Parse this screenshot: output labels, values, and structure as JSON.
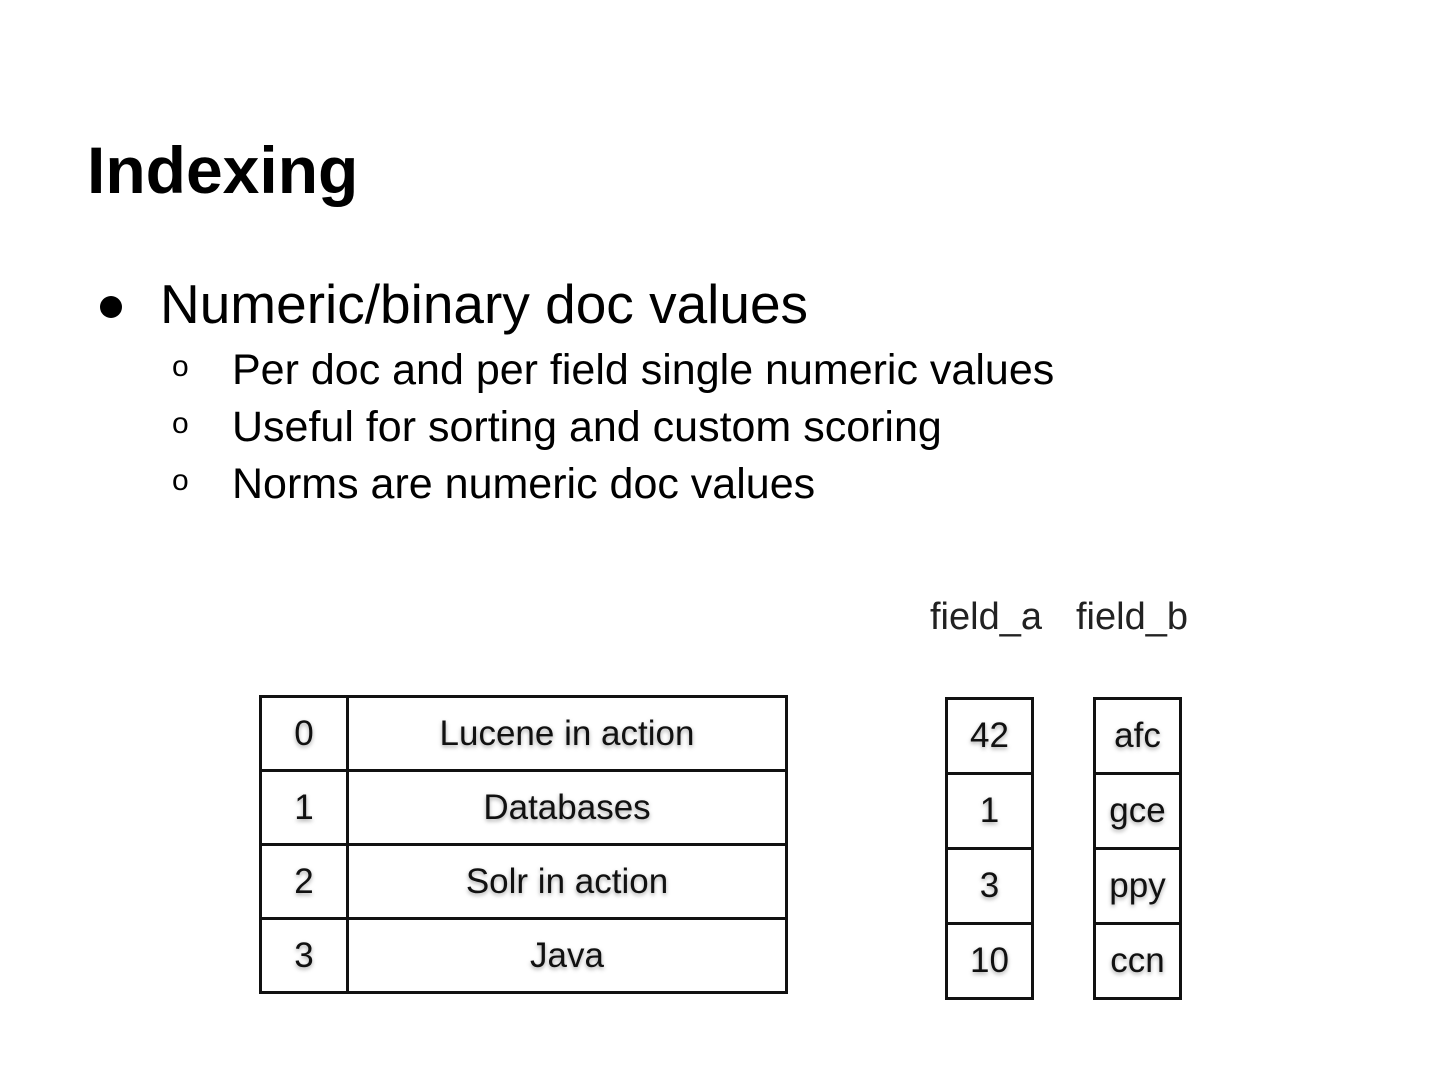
{
  "title": "Indexing",
  "bullets": [
    {
      "text": "Numeric/binary doc values",
      "marker": "●",
      "children": [
        {
          "marker": "o",
          "text": "Per doc and per field single numeric values"
        },
        {
          "marker": "o",
          "text": "Useful for sorting and custom scoring"
        },
        {
          "marker": "o",
          "text": "Norms are numeric doc values"
        }
      ]
    }
  ],
  "docs_table": {
    "rows": [
      {
        "id": "0",
        "title": "Lucene in action"
      },
      {
        "id": "1",
        "title": "Databases"
      },
      {
        "id": "2",
        "title": "Solr in action"
      },
      {
        "id": "3",
        "title": "Java"
      }
    ]
  },
  "doc_values": {
    "field_a": {
      "header": "field_a",
      "values": [
        "42",
        "1",
        "3",
        "10"
      ]
    },
    "field_b": {
      "header": "field_b",
      "values": [
        "afc",
        "gce",
        "ppy",
        "ccn"
      ]
    }
  }
}
